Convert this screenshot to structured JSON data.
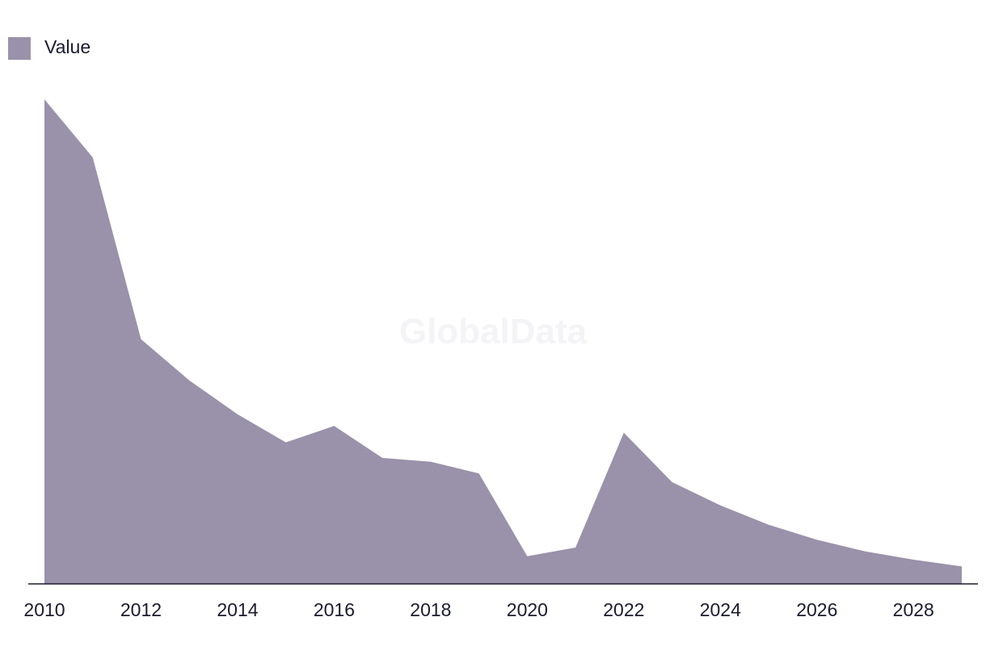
{
  "watermark": "GlobalData",
  "colors": {
    "area_fill": "#9a91aa",
    "axis": "#1b1b2e",
    "text": "#1b1b2e",
    "watermark": "#f4f3f6"
  },
  "chart_data": {
    "type": "area",
    "title": "",
    "xlabel": "",
    "ylabel": "",
    "legend": {
      "position": "top-left",
      "entries": [
        "Value"
      ]
    },
    "grid": false,
    "x": [
      2010,
      2011,
      2012,
      2013,
      2014,
      2015,
      2016,
      2017,
      2018,
      2019,
      2020,
      2021,
      2022,
      2023,
      2024,
      2025,
      2026,
      2027,
      2028,
      2029
    ],
    "x_ticks": [
      "2010",
      "2012",
      "2014",
      "2016",
      "2018",
      "2020",
      "2022",
      "2024",
      "2026",
      "2028"
    ],
    "xlim": [
      2010,
      2029
    ],
    "ylim": [
      0,
      100
    ],
    "series": [
      {
        "name": "Value",
        "color": "#9a91aa",
        "values": [
          100,
          88,
          50.5,
          42,
          35,
          29.2,
          32.6,
          26,
          25.2,
          22.8,
          5.7,
          7.5,
          31.2,
          21,
          16.2,
          12.2,
          9.1,
          6.7,
          5,
          3.6
        ]
      }
    ]
  }
}
